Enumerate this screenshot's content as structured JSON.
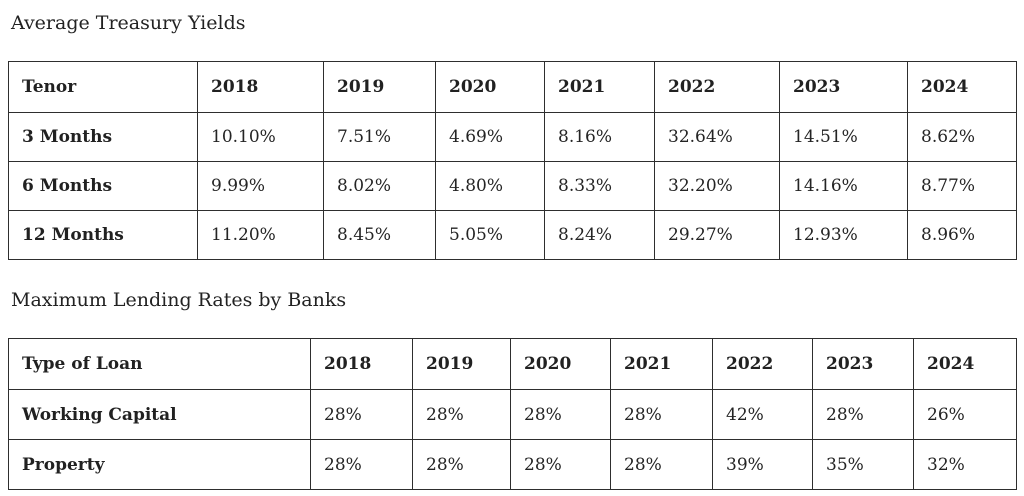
{
  "page": {
    "background_color": "#ffffff",
    "text_color": "#212121",
    "border_color": "#2e2e2e"
  },
  "tables": [
    {
      "title": "Average Treasury Yields",
      "columns": [
        "Tenor",
        "2018",
        "2019",
        "2020",
        "2021",
        "2022",
        "2023",
        "2024"
      ],
      "rows": [
        {
          "label": "3 Months",
          "values": [
            "10.10%",
            "7.51%",
            "4.69%",
            "8.16%",
            "32.64%",
            "14.51%",
            "8.62%"
          ]
        },
        {
          "label": "6 Months",
          "values": [
            "9.99%",
            "8.02%",
            "4.80%",
            "8.33%",
            "32.20%",
            "14.16%",
            "8.77%"
          ]
        },
        {
          "label": "12 Months",
          "values": [
            "11.20%",
            "8.45%",
            "5.05%",
            "8.24%",
            "29.27%",
            "12.93%",
            "8.96%"
          ]
        }
      ]
    },
    {
      "title": "Maximum Lending Rates by Banks",
      "columns": [
        "Type of Loan",
        "2018",
        "2019",
        "2020",
        "2021",
        "2022",
        "2023",
        "2024"
      ],
      "rows": [
        {
          "label": "Working Capital",
          "values": [
            "28%",
            "28%",
            "28%",
            "28%",
            "42%",
            "28%",
            "26%"
          ]
        },
        {
          "label": "Property",
          "values": [
            "28%",
            "28%",
            "28%",
            "28%",
            "39%",
            "35%",
            "32%"
          ]
        }
      ]
    }
  ]
}
